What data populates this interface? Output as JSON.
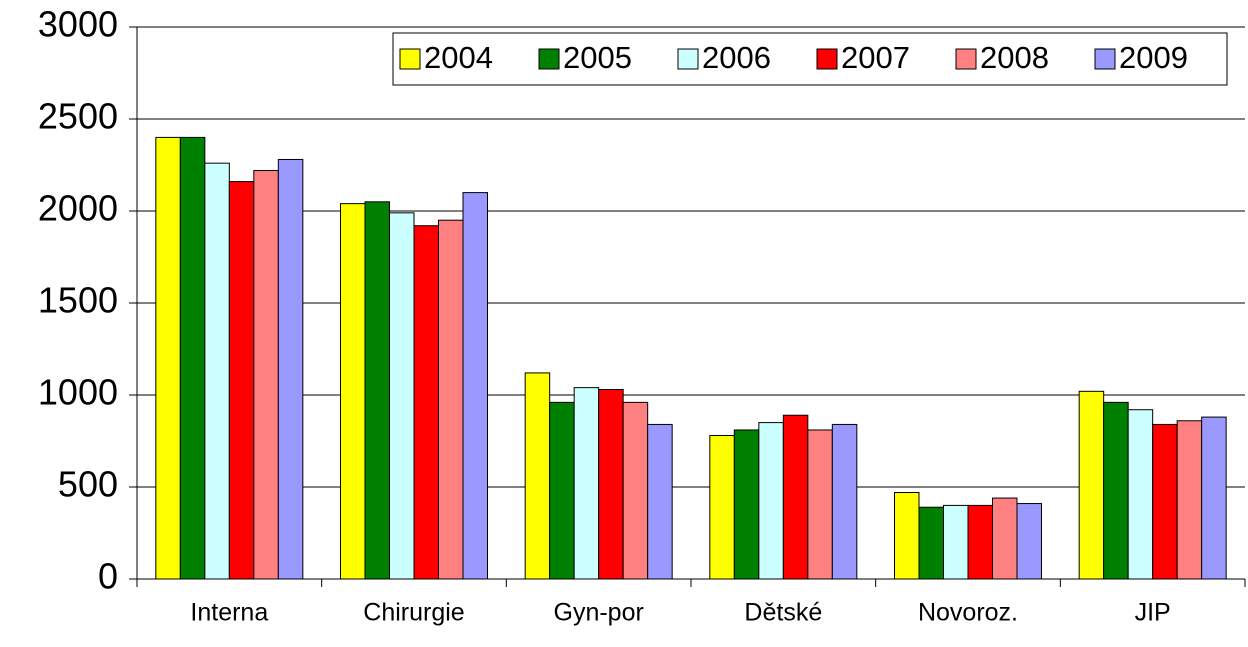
{
  "chart_data": {
    "type": "bar",
    "categories": [
      "Interna",
      "Chirurgie",
      "Gyn-por",
      "Dětské",
      "Novoroz.",
      "JIP"
    ],
    "series": [
      {
        "name": "2004",
        "color": "#ffff00",
        "values": [
          2400,
          2040,
          1120,
          780,
          470,
          1020
        ]
      },
      {
        "name": "2005",
        "color": "#008000",
        "values": [
          2400,
          2050,
          960,
          810,
          390,
          960
        ]
      },
      {
        "name": "2006",
        "color": "#ccffff",
        "values": [
          2260,
          1990,
          1040,
          850,
          400,
          920
        ]
      },
      {
        "name": "2007",
        "color": "#ff0000",
        "values": [
          2160,
          1920,
          1030,
          890,
          400,
          840
        ]
      },
      {
        "name": "2008",
        "color": "#ff8080",
        "values": [
          2220,
          1950,
          960,
          810,
          440,
          860
        ]
      },
      {
        "name": "2009",
        "color": "#9999ff",
        "values": [
          2280,
          2100,
          840,
          840,
          410,
          880
        ]
      }
    ],
    "ylim": [
      0,
      3000
    ],
    "yticks": [
      0,
      500,
      1000,
      1500,
      2000,
      2500,
      3000
    ],
    "grid": true,
    "legend": "top-right"
  }
}
